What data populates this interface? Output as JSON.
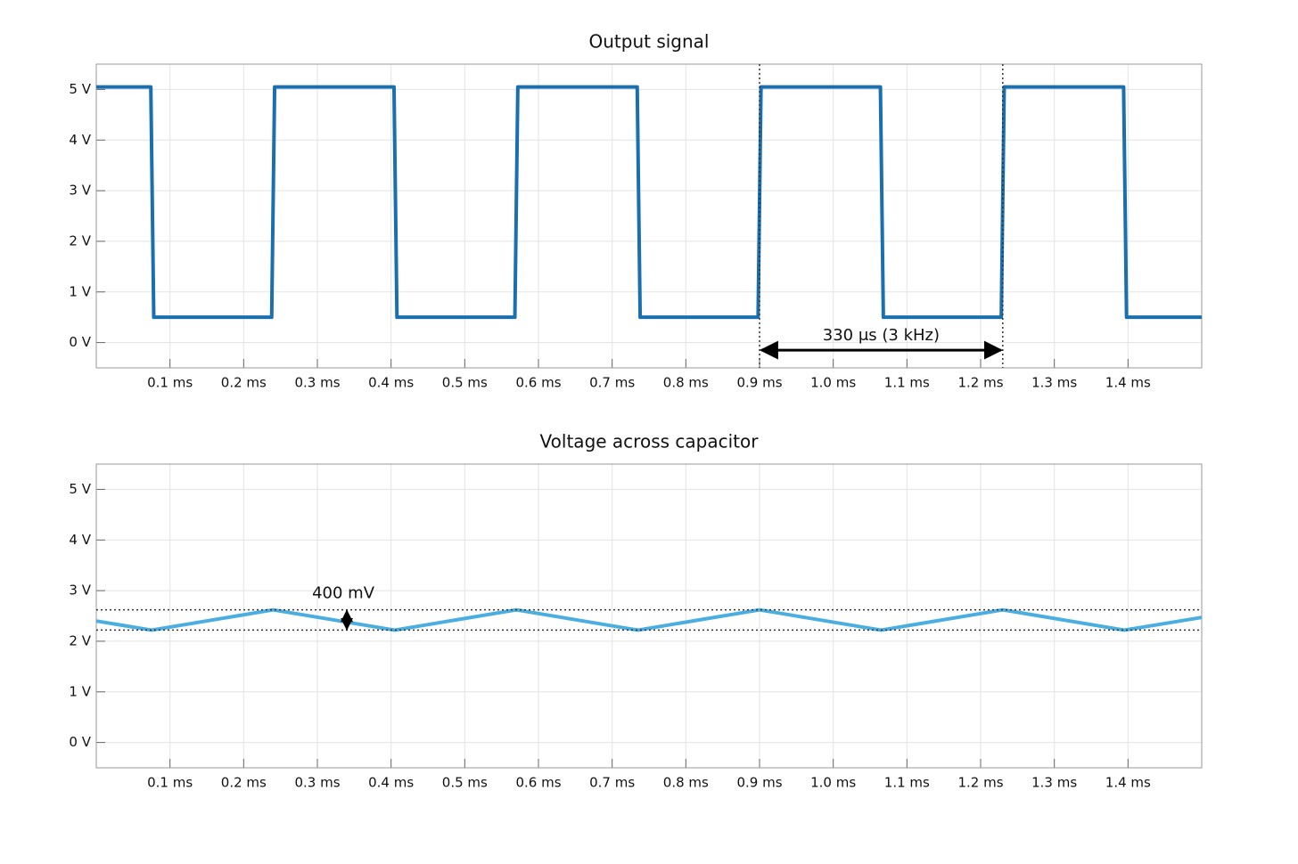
{
  "chart_data": [
    {
      "type": "line",
      "title": "Output signal",
      "x": [
        0,
        0.074,
        0.078,
        0.238,
        0.242,
        0.404,
        0.408,
        0.568,
        0.572,
        0.734,
        0.738,
        0.898,
        0.902,
        1.064,
        1.068,
        1.228,
        1.232,
        1.394,
        1.398,
        1.5
      ],
      "series": [
        {
          "color": "#1a6faf",
          "values": [
            5.05,
            5.05,
            0.5,
            0.5,
            5.05,
            5.05,
            0.5,
            0.5,
            5.05,
            5.05,
            0.5,
            0.5,
            5.05,
            5.05,
            0.5,
            0.5,
            5.05,
            5.05,
            0.5,
            0.5
          ]
        }
      ],
      "xlim": [
        0,
        1.5
      ],
      "xticks": [
        {
          "value": 0.1,
          "label": "0.1 ms"
        },
        {
          "value": 0.2,
          "label": "0.2 ms"
        },
        {
          "value": 0.3,
          "label": "0.3 ms"
        },
        {
          "value": 0.4,
          "label": "0.4 ms"
        },
        {
          "value": 0.5,
          "label": "0.5 ms"
        },
        {
          "value": 0.6,
          "label": "0.6 ms"
        },
        {
          "value": 0.7,
          "label": "0.7 ms"
        },
        {
          "value": 0.8,
          "label": "0.8 ms"
        },
        {
          "value": 0.9,
          "label": "0.9 ms"
        },
        {
          "value": 1.0,
          "label": "1.0 ms"
        },
        {
          "value": 1.1,
          "label": "1.1 ms"
        },
        {
          "value": 1.2,
          "label": "1.2 ms"
        },
        {
          "value": 1.3,
          "label": "1.3 ms"
        },
        {
          "value": 1.4,
          "label": "1.4 ms"
        }
      ],
      "ylim": [
        -0.5,
        5.5
      ],
      "yticks": [
        {
          "value": 0,
          "label": "0 V"
        },
        {
          "value": 1,
          "label": "1 V"
        },
        {
          "value": 2,
          "label": "2 V"
        },
        {
          "value": 3,
          "label": "3 V"
        },
        {
          "value": 4,
          "label": "4 V"
        },
        {
          "value": 5,
          "label": "5 V"
        }
      ],
      "grid": true,
      "annotations": [
        {
          "text": "330 μs (3 kHz)",
          "markers_x": [
            0.9,
            1.23
          ],
          "arrow_y": -0.15
        }
      ]
    },
    {
      "type": "line",
      "title": "Voltage across capacitor",
      "x": [
        0,
        0.075,
        0.24,
        0.405,
        0.57,
        0.735,
        0.9,
        1.065,
        1.23,
        1.395,
        1.5
      ],
      "series": [
        {
          "color": "#4aaee0",
          "values": [
            2.4,
            2.22,
            2.62,
            2.22,
            2.62,
            2.22,
            2.62,
            2.22,
            2.62,
            2.22,
            2.47
          ]
        }
      ],
      "xlim": [
        0,
        1.5
      ],
      "xticks": [
        {
          "value": 0.1,
          "label": "0.1 ms"
        },
        {
          "value": 0.2,
          "label": "0.2 ms"
        },
        {
          "value": 0.3,
          "label": "0.3 ms"
        },
        {
          "value": 0.4,
          "label": "0.4 ms"
        },
        {
          "value": 0.5,
          "label": "0.5 ms"
        },
        {
          "value": 0.6,
          "label": "0.6 ms"
        },
        {
          "value": 0.7,
          "label": "0.7 ms"
        },
        {
          "value": 0.8,
          "label": "0.8 ms"
        },
        {
          "value": 0.9,
          "label": "0.9 ms"
        },
        {
          "value": 1.0,
          "label": "1.0 ms"
        },
        {
          "value": 1.1,
          "label": "1.1 ms"
        },
        {
          "value": 1.2,
          "label": "1.2 ms"
        },
        {
          "value": 1.3,
          "label": "1.3 ms"
        },
        {
          "value": 1.4,
          "label": "1.4 ms"
        }
      ],
      "ylim": [
        -0.5,
        5.5
      ],
      "yticks": [
        {
          "value": 0,
          "label": "0 V"
        },
        {
          "value": 1,
          "label": "1 V"
        },
        {
          "value": 2,
          "label": "2 V"
        },
        {
          "value": 3,
          "label": "3 V"
        },
        {
          "value": 4,
          "label": "4 V"
        },
        {
          "value": 5,
          "label": "5 V"
        }
      ],
      "grid": true,
      "annotations": [
        {
          "text": "400 mV",
          "levels": [
            2.22,
            2.62
          ],
          "arrow_x": 0.34
        }
      ]
    }
  ]
}
